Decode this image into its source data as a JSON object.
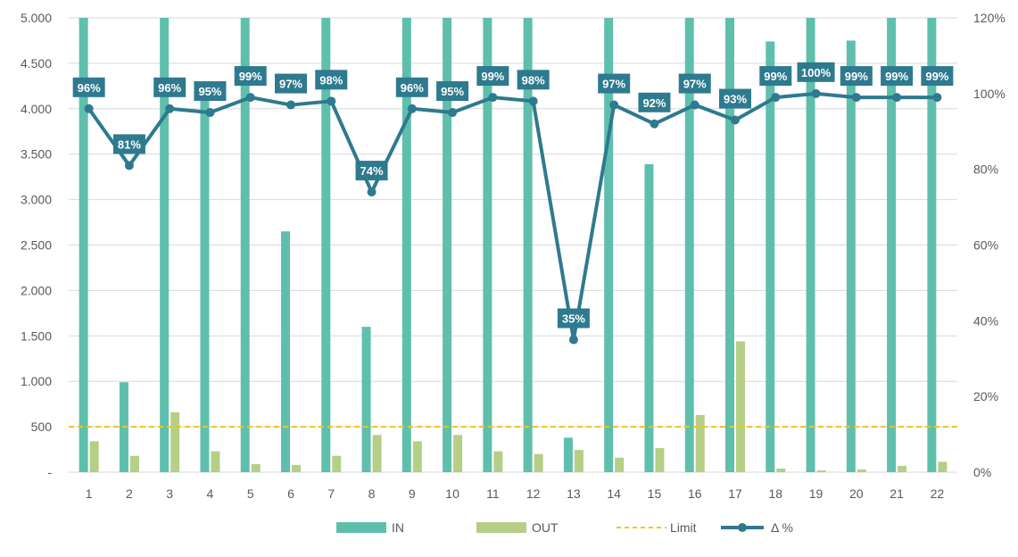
{
  "chart_data": {
    "type": "bar",
    "title": "",
    "xlabel": "",
    "ylabel": "",
    "categories": [
      "1",
      "2",
      "3",
      "4",
      "5",
      "6",
      "7",
      "8",
      "9",
      "10",
      "11",
      "12",
      "13",
      "14",
      "15",
      "16",
      "17",
      "18",
      "19",
      "20",
      "21",
      "22"
    ],
    "series": [
      {
        "name": "IN",
        "kind": "bar",
        "axis": "left",
        "color": "#5fbfad",
        "values": [
          5000,
          990,
          5000,
          4100,
          5000,
          2650,
          5000,
          1600,
          5000,
          5000,
          5000,
          5000,
          380,
          5000,
          3390,
          5000,
          5000,
          4740,
          5000,
          4750,
          5000,
          5000
        ]
      },
      {
        "name": "OUT",
        "kind": "bar",
        "axis": "left",
        "color": "#b5cf86",
        "values": [
          340,
          180,
          660,
          230,
          90,
          80,
          180,
          410,
          340,
          410,
          230,
          200,
          245,
          160,
          265,
          630,
          1440,
          40,
          20,
          30,
          70,
          115
        ]
      },
      {
        "name": "Limit",
        "kind": "dashed-line",
        "axis": "left",
        "color": "#f0c419",
        "values": [
          500,
          500,
          500,
          500,
          500,
          500,
          500,
          500,
          500,
          500,
          500,
          500,
          500,
          500,
          500,
          500,
          500,
          500,
          500,
          500,
          500,
          500
        ]
      },
      {
        "name": "Δ %",
        "kind": "line-markers",
        "axis": "right",
        "color": "#2e7a8e",
        "values": [
          96,
          81,
          96,
          95,
          99,
          97,
          98,
          74,
          96,
          95,
          99,
          98,
          35,
          97,
          92,
          97,
          93,
          99,
          100,
          99,
          99,
          99
        ],
        "labels": [
          "96%",
          "81%",
          "96%",
          "95%",
          "99%",
          "97%",
          "98%",
          "74%",
          "96%",
          "95%",
          "99%",
          "98%",
          "35%",
          "97%",
          "92%",
          "97%",
          "93%",
          "99%",
          "100%",
          "99%",
          "99%",
          "99%"
        ]
      }
    ],
    "y_left": {
      "ylim": [
        0,
        5000
      ],
      "ticks": [
        {
          "value": 0,
          "label": "-"
        },
        {
          "value": 500,
          "label": "500"
        },
        {
          "value": 1000,
          "label": "1.000"
        },
        {
          "value": 1500,
          "label": "1.500"
        },
        {
          "value": 2000,
          "label": "2.000"
        },
        {
          "value": 2500,
          "label": "2.500"
        },
        {
          "value": 3000,
          "label": "3.000"
        },
        {
          "value": 3500,
          "label": "3.500"
        },
        {
          "value": 4000,
          "label": "4.000"
        },
        {
          "value": 4500,
          "label": "4.500"
        },
        {
          "value": 5000,
          "label": "5.000"
        }
      ]
    },
    "y_right": {
      "ylim": [
        0,
        120
      ],
      "ticks": [
        {
          "value": 0,
          "label": "0%"
        },
        {
          "value": 20,
          "label": "20%"
        },
        {
          "value": 40,
          "label": "40%"
        },
        {
          "value": 60,
          "label": "60%"
        },
        {
          "value": 80,
          "label": "80%"
        },
        {
          "value": 100,
          "label": "100%"
        },
        {
          "value": 120,
          "label": "120%"
        }
      ]
    },
    "grid": true,
    "legend_position": "bottom",
    "label_box_color": "#2e7a8e"
  }
}
